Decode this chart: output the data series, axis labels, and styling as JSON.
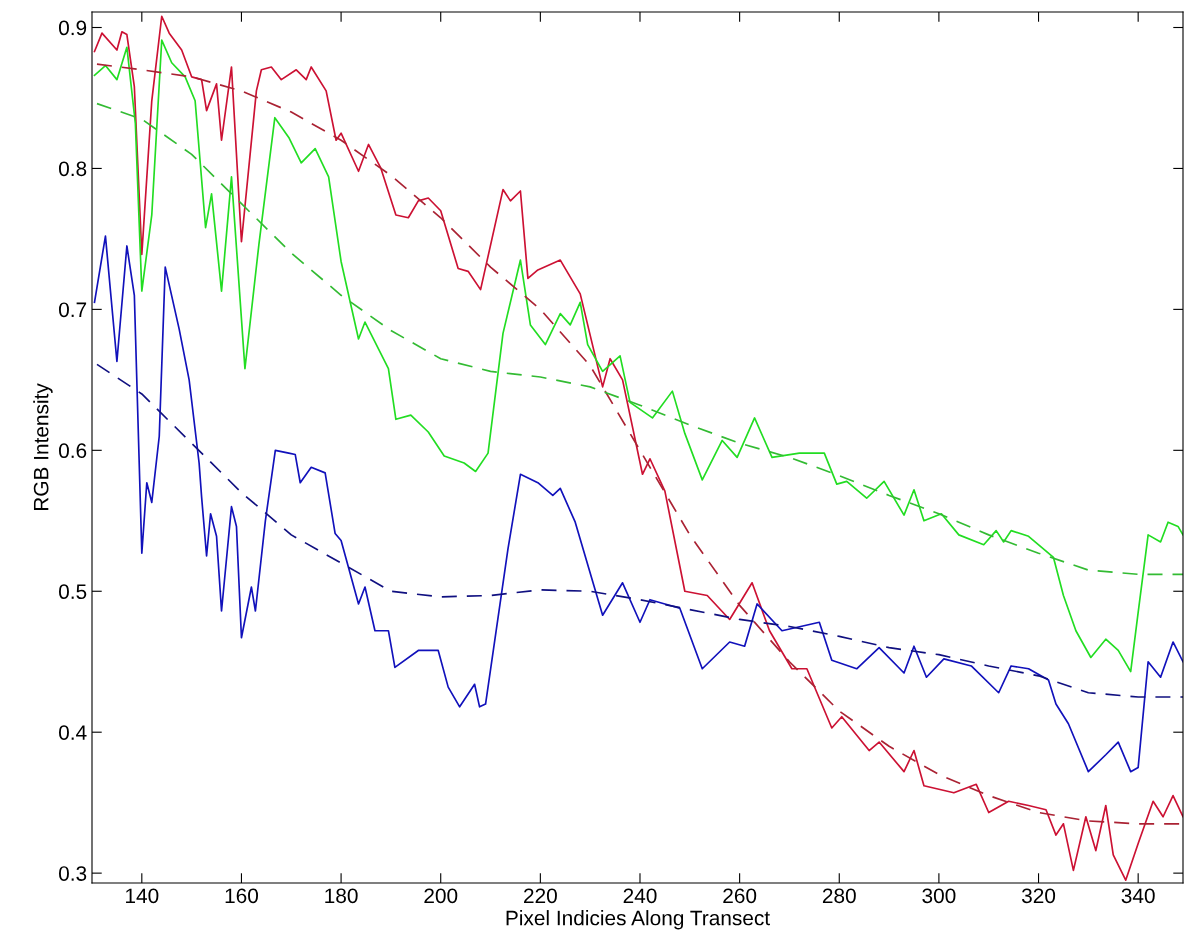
{
  "chart_data": {
    "type": "line",
    "xlabel": "Pixel Indicies Along Transect",
    "ylabel": "RGB Intensity",
    "xlim": [
      130,
      349
    ],
    "ylim": [
      0.293,
      0.911
    ],
    "xticks": [
      140,
      160,
      180,
      200,
      220,
      240,
      260,
      280,
      300,
      320,
      340
    ],
    "yticks": [
      0.3,
      0.4,
      0.5,
      0.6,
      0.7,
      0.8,
      0.9
    ],
    "grid": false,
    "marker": "none",
    "series": [
      {
        "line_style": "solid",
        "color": "#cc1133",
        "x": [
          130.5,
          132,
          135,
          136,
          137,
          138.5,
          140,
          142,
          144,
          145.5,
          148,
          150,
          152,
          153,
          155,
          156,
          158,
          160,
          163,
          164,
          166,
          168,
          171,
          173,
          174,
          177,
          179,
          180,
          183.5,
          185.5,
          188,
          191,
          193.5,
          195.5,
          197.5,
          200,
          203.5,
          205.5,
          208,
          212.5,
          214,
          216,
          217.5,
          219.5,
          224,
          228,
          232.5,
          234,
          236.5,
          240.5,
          242,
          245,
          249,
          253.5,
          258,
          262.5,
          266,
          270.5,
          273.5,
          278.5,
          280.5,
          286,
          288,
          293,
          295,
          297,
          303,
          307.5,
          310,
          314,
          318,
          321.5,
          323.5,
          325,
          327,
          329.5,
          331.5,
          333.5,
          335,
          337.5,
          340,
          343,
          345,
          347,
          349
        ],
        "values": [
          0.883,
          0.896,
          0.884,
          0.897,
          0.895,
          0.858,
          0.739,
          0.848,
          0.908,
          0.896,
          0.884,
          0.865,
          0.863,
          0.841,
          0.86,
          0.82,
          0.872,
          0.748,
          0.855,
          0.87,
          0.872,
          0.863,
          0.87,
          0.863,
          0.872,
          0.855,
          0.82,
          0.825,
          0.798,
          0.817,
          0.8,
          0.767,
          0.765,
          0.777,
          0.779,
          0.77,
          0.729,
          0.727,
          0.714,
          0.785,
          0.777,
          0.784,
          0.722,
          0.728,
          0.735,
          0.711,
          0.645,
          0.665,
          0.65,
          0.583,
          0.594,
          0.571,
          0.5,
          0.497,
          0.48,
          0.506,
          0.472,
          0.445,
          0.445,
          0.403,
          0.411,
          0.387,
          0.393,
          0.372,
          0.387,
          0.362,
          0.357,
          0.363,
          0.343,
          0.351,
          0.348,
          0.345,
          0.327,
          0.335,
          0.302,
          0.34,
          0.316,
          0.348,
          0.313,
          0.295,
          0.321,
          0.351,
          0.34,
          0.355,
          0.34
        ]
      },
      {
        "line_style": "solid",
        "color": "#22dd22",
        "x": [
          130.5,
          132.7,
          135,
          137,
          138.7,
          140,
          142,
          144,
          146,
          148.7,
          150.7,
          152.8,
          154,
          156,
          158,
          160.7,
          163.5,
          166.7,
          169.5,
          172,
          174.8,
          177.5,
          180,
          183.5,
          184.8,
          189.5,
          191,
          194,
          197.5,
          200.7,
          204.7,
          207,
          209.5,
          212.5,
          216,
          218,
          221,
          224,
          226,
          228,
          229.5,
          232.5,
          236,
          238,
          242.5,
          246.5,
          249,
          252.5,
          256.5,
          259.5,
          263,
          266.5,
          272,
          277,
          279.5,
          281.5,
          285.5,
          289,
          293,
          295,
          297,
          300.5,
          304,
          309,
          311.5,
          313,
          314.5,
          318,
          323,
          325,
          327.5,
          330.5,
          333.5,
          336,
          338.5,
          340,
          342,
          344.5,
          346,
          348,
          349
        ],
        "values": [
          0.866,
          0.873,
          0.863,
          0.886,
          0.832,
          0.713,
          0.767,
          0.891,
          0.875,
          0.865,
          0.848,
          0.758,
          0.782,
          0.713,
          0.794,
          0.658,
          0.746,
          0.836,
          0.822,
          0.804,
          0.814,
          0.794,
          0.734,
          0.679,
          0.691,
          0.658,
          0.622,
          0.625,
          0.613,
          0.596,
          0.591,
          0.585,
          0.598,
          0.683,
          0.735,
          0.689,
          0.675,
          0.697,
          0.689,
          0.705,
          0.675,
          0.656,
          0.667,
          0.634,
          0.623,
          0.642,
          0.612,
          0.579,
          0.607,
          0.595,
          0.623,
          0.595,
          0.598,
          0.598,
          0.576,
          0.578,
          0.566,
          0.578,
          0.554,
          0.572,
          0.55,
          0.555,
          0.54,
          0.533,
          0.543,
          0.535,
          0.543,
          0.539,
          0.524,
          0.497,
          0.472,
          0.453,
          0.466,
          0.458,
          0.443,
          0.485,
          0.54,
          0.535,
          0.549,
          0.546,
          0.54
        ]
      },
      {
        "line_style": "solid",
        "color": "#1111bb",
        "x": [
          130.5,
          132.7,
          135,
          137,
          138.5,
          140,
          141,
          142,
          143.5,
          144.7,
          147.5,
          149.5,
          151.5,
          152,
          153,
          153.8,
          155,
          156,
          158,
          159,
          160,
          162,
          162.8,
          164.8,
          166.8,
          169.5,
          170.8,
          171.8,
          174,
          176.8,
          178.8,
          180,
          183.5,
          184.8,
          186.8,
          189.5,
          190.8,
          195.5,
          199.5,
          201.5,
          203.8,
          206.8,
          207.8,
          209,
          213.5,
          216,
          219.5,
          222.5,
          224,
          227,
          232.5,
          236.5,
          240,
          242,
          245,
          248,
          252.5,
          258,
          261,
          263.5,
          268.5,
          276,
          278.5,
          283.5,
          288,
          293,
          295,
          297.5,
          301,
          306.5,
          312,
          314.5,
          318,
          322,
          323.5,
          326,
          330,
          333.5,
          336,
          338.5,
          340,
          342,
          344.5,
          347,
          349
        ],
        "values": [
          0.705,
          0.752,
          0.663,
          0.745,
          0.71,
          0.527,
          0.577,
          0.563,
          0.61,
          0.73,
          0.686,
          0.65,
          0.591,
          0.567,
          0.525,
          0.555,
          0.539,
          0.486,
          0.56,
          0.546,
          0.467,
          0.503,
          0.486,
          0.55,
          0.6,
          0.598,
          0.597,
          0.577,
          0.588,
          0.584,
          0.541,
          0.536,
          0.491,
          0.503,
          0.472,
          0.472,
          0.446,
          0.458,
          0.458,
          0.432,
          0.418,
          0.434,
          0.418,
          0.42,
          0.53,
          0.583,
          0.577,
          0.568,
          0.573,
          0.549,
          0.483,
          0.506,
          0.478,
          0.494,
          0.491,
          0.488,
          0.445,
          0.464,
          0.461,
          0.491,
          0.472,
          0.478,
          0.451,
          0.445,
          0.46,
          0.442,
          0.461,
          0.439,
          0.452,
          0.447,
          0.428,
          0.447,
          0.445,
          0.437,
          0.42,
          0.406,
          0.372,
          0.384,
          0.393,
          0.372,
          0.375,
          0.45,
          0.439,
          0.464,
          0.45
        ]
      },
      {
        "line_style": "dashed",
        "color": "#aa2233",
        "x": [
          131,
          140,
          150,
          160,
          170,
          180,
          190,
          200,
          210,
          220,
          230,
          240,
          250,
          260,
          270,
          280,
          290,
          300,
          310,
          320,
          330,
          340,
          349
        ],
        "values": [
          0.874,
          0.87,
          0.865,
          0.855,
          0.84,
          0.82,
          0.795,
          0.765,
          0.73,
          0.7,
          0.66,
          0.6,
          0.54,
          0.49,
          0.45,
          0.415,
          0.39,
          0.37,
          0.355,
          0.343,
          0.337,
          0.335,
          0.335
        ]
      },
      {
        "line_style": "dashed",
        "color": "#33bb33",
        "x": [
          131,
          140,
          150,
          160,
          170,
          180,
          190,
          200,
          210,
          220,
          230,
          240,
          250,
          260,
          270,
          280,
          290,
          300,
          310,
          320,
          330,
          340,
          349
        ],
        "values": [
          0.846,
          0.835,
          0.81,
          0.775,
          0.74,
          0.71,
          0.685,
          0.665,
          0.656,
          0.652,
          0.645,
          0.632,
          0.618,
          0.605,
          0.595,
          0.582,
          0.568,
          0.555,
          0.54,
          0.527,
          0.515,
          0.512,
          0.512
        ]
      },
      {
        "line_style": "dashed",
        "color": "#101080",
        "x": [
          131,
          140,
          150,
          160,
          170,
          180,
          190,
          200,
          210,
          220,
          230,
          240,
          250,
          260,
          270,
          280,
          290,
          300,
          310,
          320,
          330,
          340,
          349
        ],
        "values": [
          0.661,
          0.64,
          0.605,
          0.57,
          0.54,
          0.52,
          0.5,
          0.496,
          0.497,
          0.501,
          0.5,
          0.494,
          0.487,
          0.48,
          0.475,
          0.468,
          0.46,
          0.455,
          0.447,
          0.44,
          0.428,
          0.425,
          0.425
        ]
      }
    ]
  }
}
